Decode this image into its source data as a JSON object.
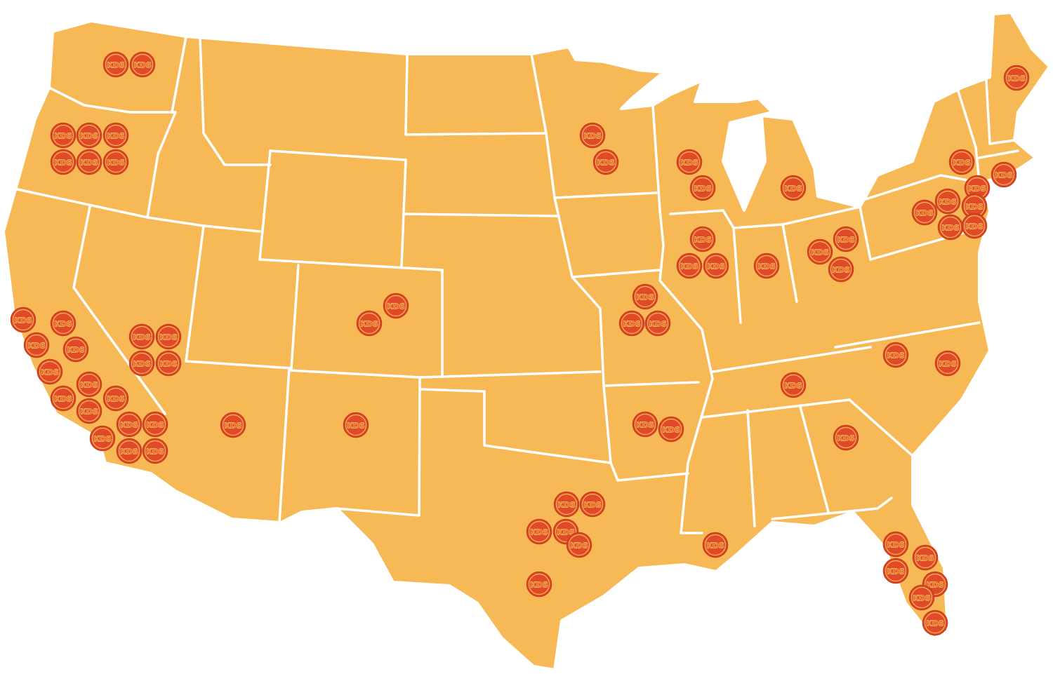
{
  "map": {
    "fill_color": "#f6b955",
    "border_color": "#ffffff",
    "marker_color": "#e04a28"
  },
  "marker_label": "KDS",
  "locations": [
    {
      "state": "WA",
      "n": 2
    },
    {
      "state": "OR",
      "n": 6
    },
    {
      "state": "CA",
      "n": 14
    },
    {
      "state": "NV",
      "n": 4
    },
    {
      "state": "AZ",
      "n": 1
    },
    {
      "state": "NM",
      "n": 1
    },
    {
      "state": "CO",
      "n": 2
    },
    {
      "state": "MN",
      "n": 2
    },
    {
      "state": "WI",
      "n": 2
    },
    {
      "state": "MI",
      "n": 1
    },
    {
      "state": "IL",
      "n": 3
    },
    {
      "state": "IN",
      "n": 1
    },
    {
      "state": "OH",
      "n": 3
    },
    {
      "state": "MO",
      "n": 3
    },
    {
      "state": "AR",
      "n": 2
    },
    {
      "state": "TN",
      "n": 1
    },
    {
      "state": "GA",
      "n": 1
    },
    {
      "state": "NC",
      "n": 2
    },
    {
      "state": "TX",
      "n": 6
    },
    {
      "state": "LA",
      "n": 1
    },
    {
      "state": "FL",
      "n": 6
    },
    {
      "state": "NY/NJ/PA/CT",
      "n": 8
    },
    {
      "state": "ME",
      "n": 1
    }
  ]
}
